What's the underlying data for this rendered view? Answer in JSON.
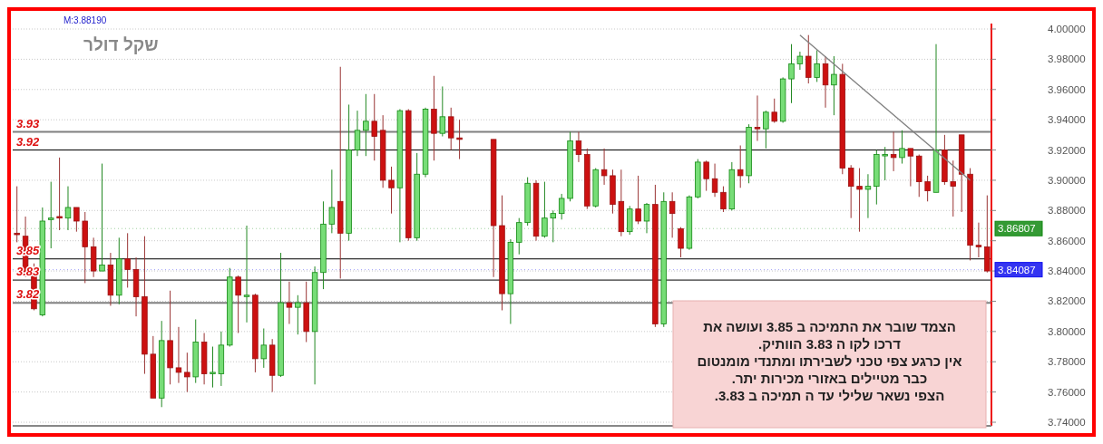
{
  "chart_data": {
    "type": "candlestick",
    "title": "שקל דולר",
    "categories": [
      null,
      null,
      null,
      null,
      null,
      null,
      null,
      null,
      null,
      null,
      null,
      null,
      null,
      null,
      null,
      null,
      null,
      null,
      null,
      null,
      null,
      null,
      null,
      null,
      null,
      null,
      null,
      null,
      null,
      null,
      null,
      null,
      null,
      null,
      null,
      null,
      null,
      null,
      null,
      null,
      null,
      null,
      null,
      null,
      null,
      null,
      null,
      null,
      null,
      null,
      null,
      null,
      null,
      null,
      null,
      null,
      null,
      null,
      null,
      null,
      null,
      null,
      null,
      null,
      null,
      null,
      null,
      null,
      null,
      null,
      null,
      null,
      null,
      null,
      null,
      null,
      null,
      null,
      null,
      null,
      null,
      null,
      null,
      null,
      null,
      null,
      null,
      null,
      null,
      null,
      null,
      null,
      null,
      null,
      null,
      null,
      null,
      null,
      null,
      null,
      null,
      null,
      null,
      null,
      null,
      null,
      null,
      null,
      null,
      null,
      null,
      null,
      null,
      null,
      null
    ],
    "ohlc": [
      [
        3.865,
        3.896,
        3.859,
        3.864
      ],
      [
        3.863,
        3.876,
        3.836,
        3.837
      ],
      [
        3.837,
        3.845,
        3.814,
        3.815
      ],
      [
        3.811,
        3.882,
        3.81,
        3.873
      ],
      [
        3.874,
        3.899,
        3.855,
        3.875
      ],
      [
        3.876,
        3.915,
        3.867,
        3.875
      ],
      [
        3.875,
        3.896,
        3.867,
        3.882
      ],
      [
        3.882,
        3.882,
        3.866,
        3.873
      ],
      [
        3.873,
        3.879,
        3.832,
        3.856
      ],
      [
        3.856,
        3.862,
        3.836,
        3.84
      ],
      [
        3.84,
        3.911,
        3.84,
        3.844
      ],
      [
        3.844,
        3.852,
        3.817,
        3.824
      ],
      [
        3.824,
        3.862,
        3.818,
        3.848
      ],
      [
        3.848,
        3.865,
        3.829,
        3.841
      ],
      [
        3.841,
        3.849,
        3.81,
        3.823
      ],
      [
        3.823,
        3.863,
        3.772,
        3.785
      ],
      [
        3.785,
        3.797,
        3.756,
        3.756
      ],
      [
        3.756,
        3.807,
        3.75,
        3.794
      ],
      [
        3.794,
        3.827,
        3.765,
        3.776
      ],
      [
        3.776,
        3.803,
        3.766,
        3.773
      ],
      [
        3.773,
        3.786,
        3.76,
        3.77
      ],
      [
        3.77,
        3.808,
        3.766,
        3.793
      ],
      [
        3.793,
        3.799,
        3.765,
        3.772
      ],
      [
        3.773,
        3.79,
        3.763,
        3.773
      ],
      [
        3.772,
        3.8,
        3.764,
        3.791
      ],
      [
        3.791,
        3.842,
        3.79,
        3.836
      ],
      [
        3.836,
        3.837,
        3.799,
        3.824
      ],
      [
        3.824,
        3.87,
        3.806,
        3.824
      ],
      [
        3.824,
        3.825,
        3.773,
        3.782
      ],
      [
        3.782,
        3.802,
        3.776,
        3.791
      ],
      [
        3.791,
        3.795,
        3.76,
        3.771
      ],
      [
        3.771,
        3.852,
        3.77,
        3.819
      ],
      [
        3.819,
        3.833,
        3.805,
        3.816
      ],
      [
        3.816,
        3.824,
        3.798,
        3.819
      ],
      [
        3.819,
        3.833,
        3.793,
        3.8
      ],
      [
        3.8,
        3.843,
        3.765,
        3.839
      ],
      [
        3.839,
        3.886,
        3.828,
        3.871
      ],
      [
        3.871,
        3.907,
        3.865,
        3.882
      ],
      [
        3.886,
        3.975,
        3.835,
        3.865
      ],
      [
        3.865,
        3.95,
        3.86,
        3.92
      ],
      [
        3.92,
        3.946,
        3.916,
        3.933
      ],
      [
        3.933,
        3.957,
        3.916,
        3.939
      ],
      [
        3.939,
        3.957,
        3.913,
        3.929
      ],
      [
        3.933,
        3.943,
        3.895,
        3.9
      ],
      [
        3.9,
        3.909,
        3.878,
        3.895
      ],
      [
        3.895,
        3.947,
        3.859,
        3.946
      ],
      [
        3.946,
        3.947,
        3.86,
        3.862
      ],
      [
        3.862,
        3.918,
        3.86,
        3.904
      ],
      [
        3.904,
        3.948,
        3.902,
        3.947
      ],
      [
        3.947,
        3.969,
        3.913,
        3.931
      ],
      [
        3.931,
        3.962,
        3.929,
        3.942
      ],
      [
        3.942,
        3.948,
        3.92,
        3.928
      ],
      [
        3.928,
        3.94,
        3.914,
        3.927
      ],
      null,
      null,
      null,
      [
        3.927,
        3.927,
        3.836,
        3.87
      ],
      [
        3.87,
        3.89,
        3.814,
        3.825
      ],
      [
        3.825,
        3.861,
        3.805,
        3.859
      ],
      [
        3.859,
        3.875,
        3.851,
        3.872
      ],
      [
        3.872,
        3.902,
        3.87,
        3.898
      ],
      [
        3.898,
        3.9,
        3.86,
        3.863
      ],
      [
        3.863,
        3.899,
        3.862,
        3.875
      ],
      [
        3.875,
        3.88,
        3.859,
        3.878
      ],
      [
        3.878,
        3.891,
        3.874,
        3.888
      ],
      [
        3.888,
        3.932,
        3.886,
        3.926
      ],
      [
        3.926,
        3.932,
        3.912,
        3.917
      ],
      [
        3.917,
        3.921,
        3.881,
        3.883
      ],
      [
        3.883,
        3.908,
        3.882,
        3.907
      ],
      [
        3.907,
        3.921,
        3.897,
        3.903
      ],
      [
        3.903,
        3.907,
        3.878,
        3.884
      ],
      [
        3.886,
        3.907,
        3.863,
        3.866
      ],
      [
        3.866,
        3.883,
        3.864,
        3.881
      ],
      [
        3.881,
        3.903,
        3.871,
        3.873
      ],
      [
        3.873,
        3.885,
        3.865,
        3.884
      ],
      [
        3.884,
        3.897,
        3.803,
        3.805
      ],
      [
        3.805,
        3.892,
        3.803,
        3.886
      ],
      [
        3.886,
        3.892,
        3.862,
        3.878
      ],
      [
        3.868,
        3.869,
        3.849,
        3.855
      ],
      [
        3.855,
        3.89,
        3.854,
        3.889
      ],
      [
        3.889,
        3.914,
        3.888,
        3.912
      ],
      [
        3.912,
        3.913,
        3.893,
        3.901
      ],
      [
        3.901,
        3.911,
        3.889,
        3.892
      ],
      [
        3.892,
        3.896,
        3.879,
        3.881
      ],
      [
        3.881,
        3.912,
        3.88,
        3.907
      ],
      [
        3.907,
        3.923,
        3.895,
        3.903
      ],
      [
        3.903,
        3.937,
        3.898,
        3.935
      ],
      [
        3.935,
        3.956,
        3.926,
        3.934
      ],
      [
        3.934,
        3.946,
        3.921,
        3.945
      ],
      [
        3.945,
        3.954,
        3.938,
        3.939
      ],
      [
        3.939,
        3.968,
        3.938,
        3.967
      ],
      [
        3.967,
        3.99,
        3.951,
        3.977
      ],
      [
        3.977,
        3.985,
        3.973,
        3.982
      ],
      [
        3.982,
        3.996,
        3.964,
        3.968
      ],
      [
        3.968,
        3.986,
        3.965,
        3.977
      ],
      [
        3.977,
        3.982,
        3.948,
        3.963
      ],
      [
        3.963,
        3.982,
        3.943,
        3.97
      ],
      [
        3.97,
        3.977,
        3.904,
        3.908
      ],
      [
        3.908,
        3.91,
        3.875,
        3.896
      ],
      [
        3.896,
        3.908,
        3.866,
        3.894
      ],
      [
        3.894,
        3.904,
        3.875,
        3.896
      ],
      [
        3.896,
        3.92,
        3.884,
        3.917
      ],
      [
        3.917,
        3.922,
        3.9,
        3.917
      ],
      [
        3.917,
        3.932,
        3.906,
        3.915
      ],
      [
        3.915,
        3.933,
        3.911,
        3.921
      ],
      [
        3.921,
        3.921,
        3.896,
        3.916
      ],
      [
        3.916,
        3.917,
        3.889,
        3.899
      ],
      [
        3.899,
        3.903,
        3.886,
        3.893
      ],
      [
        3.892,
        3.99,
        3.892,
        3.92
      ],
      [
        3.92,
        3.93,
        3.897,
        3.899
      ],
      [
        3.899,
        3.913,
        3.876,
        3.896
      ],
      [
        3.93,
        3.93,
        3.879,
        3.904
      ],
      [
        3.904,
        3.908,
        3.847,
        3.857
      ],
      [
        3.857,
        3.872,
        3.849,
        3.856
      ],
      [
        3.856,
        3.89,
        3.839,
        3.84
      ]
    ],
    "series": [
      {
        "type": "line",
        "color": "#808080",
        "values": [
          null,
          null,
          null,
          null,
          null,
          null,
          null,
          null,
          null,
          null,
          null,
          null,
          null,
          null,
          null,
          null,
          null,
          null,
          null,
          null,
          null,
          null,
          null,
          null,
          null,
          null,
          null,
          null,
          null,
          null,
          null,
          null,
          null,
          null,
          null,
          null,
          null,
          null,
          null,
          null,
          null,
          null,
          null,
          null,
          null,
          null,
          null,
          null,
          null,
          null,
          null,
          null,
          null,
          null,
          null,
          null,
          null,
          null,
          null,
          null,
          null,
          null,
          null,
          null,
          null,
          null,
          null,
          null,
          null,
          null,
          null,
          null,
          null,
          null,
          null,
          null,
          null,
          null,
          null,
          null,
          null,
          null,
          null,
          null,
          null,
          null,
          null,
          null,
          null,
          null,
          null,
          null,
          3.996,
          null,
          null,
          null,
          null,
          null,
          null,
          null,
          null,
          null,
          null,
          null,
          null,
          null,
          null,
          null,
          null,
          null,
          null,
          null,
          3.9,
          null,
          null
        ]
      }
    ],
    "ylim": [
      3.74,
      4.0
    ],
    "yticks": [
      {
        "value": 3.74,
        "label": "3.74000"
      },
      {
        "value": 3.76,
        "label": "3.76000"
      },
      {
        "value": 3.78,
        "label": "3.78000"
      },
      {
        "value": 3.8,
        "label": "3.80000"
      },
      {
        "value": 3.82,
        "label": "3.82000"
      },
      {
        "value": 3.84,
        "label": "3.84000"
      },
      {
        "value": 3.86,
        "label": "3.86000"
      },
      {
        "value": 3.88,
        "label": "3.88000"
      },
      {
        "value": 3.9,
        "label": "3.90000"
      },
      {
        "value": 3.92,
        "label": "3.92000"
      },
      {
        "value": 3.94,
        "label": "3.94000"
      },
      {
        "value": 3.96,
        "label": "3.96000"
      },
      {
        "value": 3.98,
        "label": "3.98000"
      },
      {
        "value": 4.0,
        "label": "4.00000"
      }
    ],
    "ref_lines": [
      {
        "axis": "y",
        "value": 3.932,
        "label": "3.93",
        "color": "#808080"
      },
      {
        "axis": "y",
        "value": 3.92,
        "label": "3.92",
        "color": "#000000"
      },
      {
        "axis": "y",
        "value": 3.848,
        "label": "3.85",
        "color": "#000000"
      },
      {
        "axis": "y",
        "value": 3.834,
        "label": "3.83",
        "color": "#000000"
      },
      {
        "axis": "y",
        "value": 3.819,
        "label": "3.82",
        "color": "#808080"
      },
      {
        "axis": "y",
        "value": 3.86807,
        "label": "3.86807",
        "color": "#118811",
        "line_style": "dotted"
      },
      {
        "axis": "y",
        "value": 3.84087,
        "label": "3.84087",
        "color": "#1111ee",
        "line_style": "dotted"
      }
    ],
    "annotations": [
      "M:3.88190",
      "הצמד שובר את התמיכה ב 3.85 ועושה את\nדרכו לקו ה 3.83 הוותיק.\nאין כרגע צפי טכני לשבירתו ומתנדי מומנטום\nכבר מטיילים באזורי מכירות יתר.\nהצפי נשאר שלילי עד ה תמיכה ב 3.83."
    ],
    "grid": "y",
    "tick_labels": "y"
  }
}
